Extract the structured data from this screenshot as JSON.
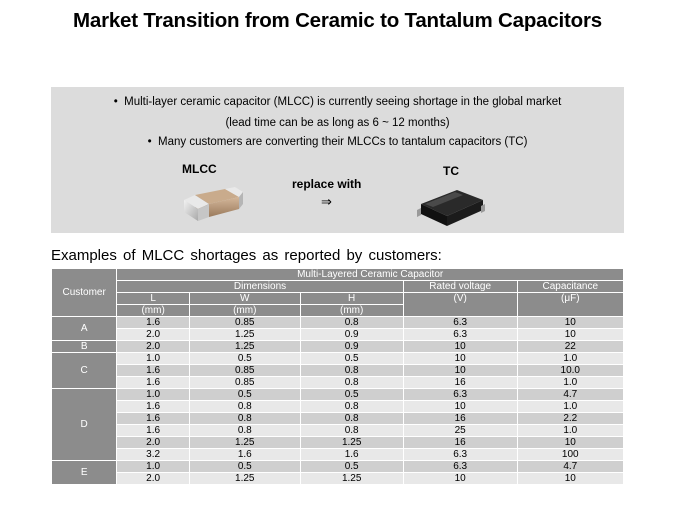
{
  "title": "Market Transition from Ceramic to Tantalum Capacitors",
  "info": {
    "bullet1_line1": "Multi-layer ceramic capacitor (MLCC) is currently seeing shortage in the global market",
    "bullet1_line2": "(lead time can be as long as 6 ~ 12 months)",
    "bullet2": "Many customers are converting their MLCCs to tantalum capacitors (TC)",
    "mlcc_label": "MLCC",
    "tc_label": "TC",
    "replace_label": "replace with",
    "arrow": "⇒"
  },
  "examples_heading": "Examples of MLCC shortages as reported by customers:",
  "table": {
    "group_header": "Multi-Layered Ceramic Capacitor",
    "customer_header": "Customer",
    "dimensions_header": "Dimensions",
    "col_l": "L",
    "col_w": "W",
    "col_h": "H",
    "unit_mm": "(mm)",
    "col_voltage": "Rated voltage",
    "unit_v": "(V)",
    "col_cap": "Capacitance",
    "unit_uf": "(μF)",
    "groups": [
      {
        "customer": "A",
        "rows": [
          [
            "1.6",
            "0.85",
            "0.8",
            "6.3",
            "10"
          ],
          [
            "2.0",
            "1.25",
            "0.9",
            "6.3",
            "10"
          ]
        ]
      },
      {
        "customer": "B",
        "rows": [
          [
            "2.0",
            "1.25",
            "0.9",
            "10",
            "22"
          ]
        ]
      },
      {
        "customer": "C",
        "rows": [
          [
            "1.0",
            "0.5",
            "0.5",
            "10",
            "1.0"
          ],
          [
            "1.6",
            "0.85",
            "0.8",
            "10",
            "10.0"
          ],
          [
            "1.6",
            "0.85",
            "0.8",
            "16",
            "1.0"
          ]
        ]
      },
      {
        "customer": "D",
        "rows": [
          [
            "1.0",
            "0.5",
            "0.5",
            "6.3",
            "4.7"
          ],
          [
            "1.6",
            "0.8",
            "0.8",
            "10",
            "1.0"
          ],
          [
            "1.6",
            "0.8",
            "0.8",
            "16",
            "2.2"
          ],
          [
            "1.6",
            "0.8",
            "0.8",
            "25",
            "1.0"
          ],
          [
            "2.0",
            "1.25",
            "1.25",
            "16",
            "10"
          ],
          [
            "3.2",
            "1.6",
            "1.6",
            "6.3",
            "100"
          ]
        ]
      },
      {
        "customer": "E",
        "rows": [
          [
            "1.0",
            "0.5",
            "0.5",
            "6.3",
            "4.7"
          ],
          [
            "2.0",
            "1.25",
            "1.25",
            "10",
            "10"
          ]
        ]
      }
    ]
  }
}
